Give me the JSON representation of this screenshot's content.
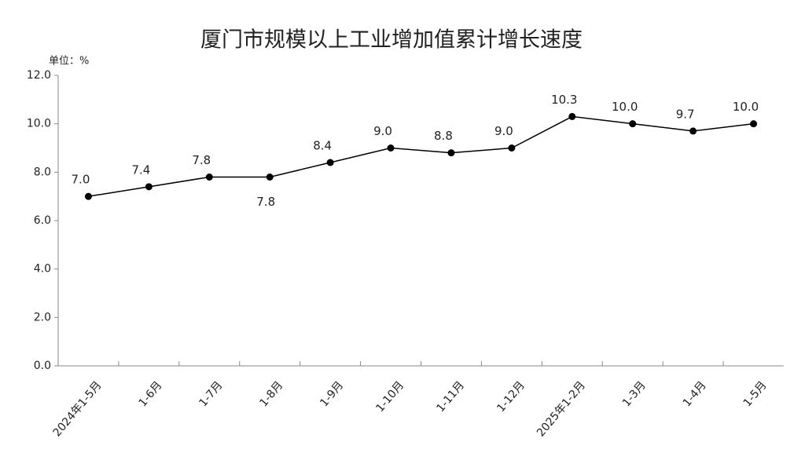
{
  "chart_data": {
    "type": "line",
    "title": "厦门市规模以上工业增加值累计增长速度",
    "y_unit_label": "单位：%",
    "categories": [
      "2024年1-5月",
      "1-6月",
      "1-7月",
      "1-8月",
      "1-9月",
      "1-10月",
      "1-11月",
      "1-12月",
      "2025年1-2月",
      "1-3月",
      "1-4月",
      "1-5月"
    ],
    "series": [
      {
        "color": "#000000",
        "values": [
          7.0,
          7.4,
          7.8,
          7.8,
          8.4,
          9.0,
          8.8,
          9.0,
          10.3,
          10.0,
          9.7,
          10.0
        ],
        "value_labels": [
          "7.0",
          "7.4",
          "7.8",
          "7.8",
          "8.4",
          "9.0",
          "8.8",
          "9.0",
          "10.3",
          "10.0",
          "9.7",
          "10.0"
        ]
      }
    ],
    "ylim": [
      0,
      12
    ],
    "yticks": [
      {
        "value": 0,
        "label": "0.0"
      },
      {
        "value": 2,
        "label": "2.0"
      },
      {
        "value": 4,
        "label": "4.0"
      },
      {
        "value": 6,
        "label": "6.0"
      },
      {
        "value": 8,
        "label": "8.0"
      },
      {
        "value": 10,
        "label": "10.0"
      },
      {
        "value": 12,
        "label": "12.0"
      }
    ],
    "grid": false
  }
}
